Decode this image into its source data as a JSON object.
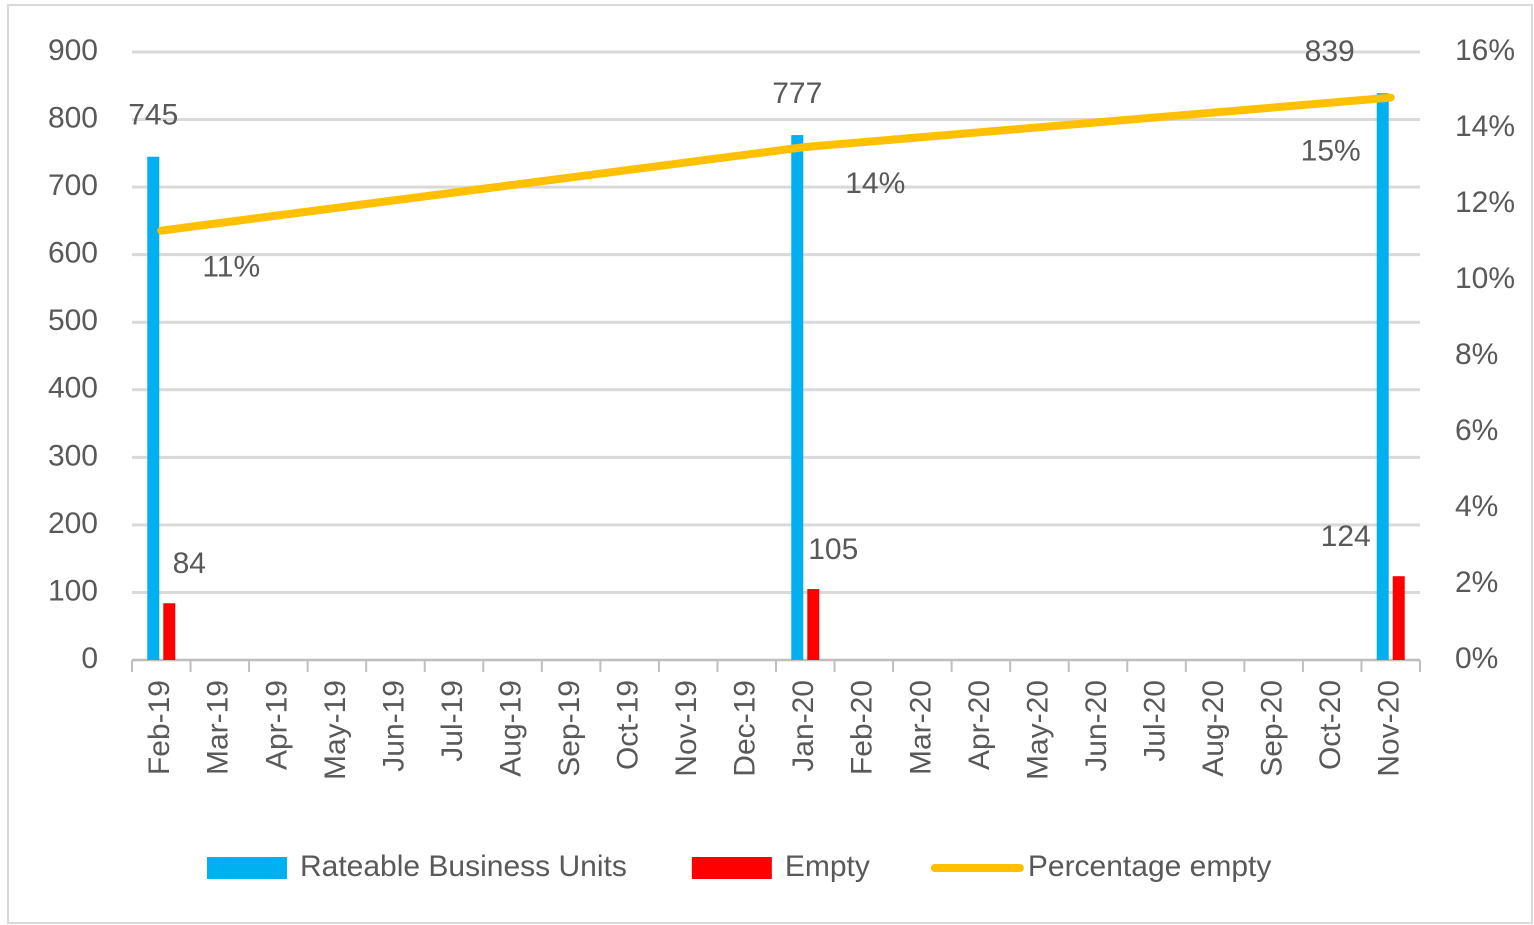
{
  "chart_data": {
    "type": "bar",
    "categories": [
      "Feb-19",
      "Mar-19",
      "Apr-19",
      "May-19",
      "Jun-19",
      "Jul-19",
      "Aug-19",
      "Sep-19",
      "Oct-19",
      "Nov-19",
      "Dec-19",
      "Jan-20",
      "Feb-20",
      "Mar-20",
      "Apr-20",
      "May-20",
      "Jun-20",
      "Jul-20",
      "Aug-20",
      "Sep-20",
      "Oct-20",
      "Nov-20"
    ],
    "series": [
      {
        "name": "Rateable Business Units",
        "color": "#00b0f0",
        "values": [
          745,
          null,
          null,
          null,
          null,
          null,
          null,
          null,
          null,
          null,
          null,
          777,
          null,
          null,
          null,
          null,
          null,
          null,
          null,
          null,
          null,
          839
        ]
      },
      {
        "name": "Empty",
        "color": "#ff0000",
        "values": [
          84,
          null,
          null,
          null,
          null,
          null,
          null,
          null,
          null,
          null,
          null,
          105,
          null,
          null,
          null,
          null,
          null,
          null,
          null,
          null,
          null,
          124
        ]
      },
      {
        "name": "Percentage empty",
        "color": "#ffc000",
        "type": "line",
        "axis": "y2",
        "connect_gaps": true,
        "values": [
          11.3,
          null,
          null,
          null,
          null,
          null,
          null,
          null,
          null,
          null,
          null,
          13.5,
          null,
          null,
          null,
          null,
          null,
          null,
          null,
          null,
          null,
          14.8
        ],
        "value_labels": [
          "11%",
          null,
          null,
          null,
          null,
          null,
          null,
          null,
          null,
          null,
          null,
          "14%",
          null,
          null,
          null,
          null,
          null,
          null,
          null,
          null,
          null,
          "15%"
        ]
      }
    ],
    "ylim": [
      0,
      900
    ],
    "yticks": [
      0,
      100,
      200,
      300,
      400,
      500,
      600,
      700,
      800,
      900
    ],
    "y2lim": [
      0,
      16
    ],
    "y2ticks": [
      {
        "value": 0,
        "label": "0%"
      },
      {
        "value": 2,
        "label": "2%"
      },
      {
        "value": 4,
        "label": "4%"
      },
      {
        "value": 6,
        "label": "6%"
      },
      {
        "value": 8,
        "label": "8%"
      },
      {
        "value": 10,
        "label": "10%"
      },
      {
        "value": 12,
        "label": "12%"
      },
      {
        "value": 14,
        "label": "14%"
      },
      {
        "value": 16,
        "label": "16%"
      }
    ],
    "grid": true,
    "legend": "bottom"
  }
}
